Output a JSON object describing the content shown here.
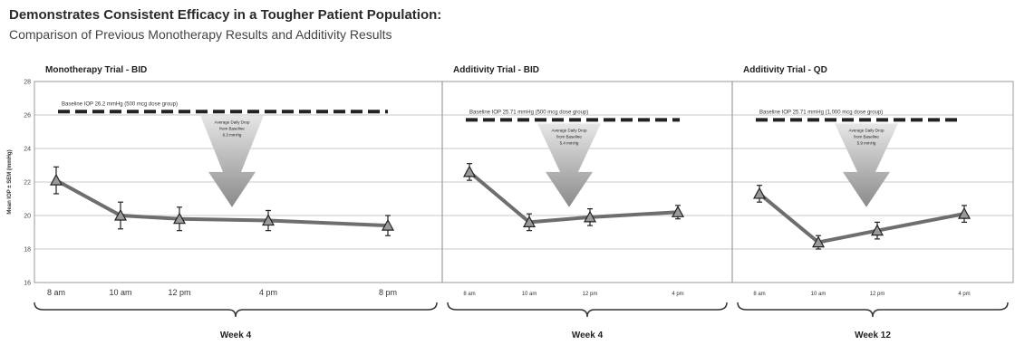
{
  "title": "Demonstrates Consistent Efficacy in a Tougher Patient Population:",
  "subtitle": "Comparison of Previous Monotherapy Results and Additivity Results",
  "chart_data": [
    {
      "type": "line",
      "title": "Monotherapy Trial - BID",
      "ylabel": "Mean IOP ± SEM (mmHg)",
      "ylim": [
        16,
        28
      ],
      "yticks": [
        "16",
        "18",
        "20",
        "22",
        "24",
        "26",
        "28"
      ],
      "categories": [
        "8 am",
        "10 am",
        "12 pm",
        "4 pm",
        "8 pm"
      ],
      "values": [
        22.1,
        20.0,
        19.8,
        19.7,
        19.4
      ],
      "errors": [
        0.8,
        0.8,
        0.7,
        0.6,
        0.6
      ],
      "baseline": {
        "value": 26.2,
        "label": "Baseline IOP 26.2 mmHg (500 mcg dose group)"
      },
      "annotation": [
        "Average Daily Drop",
        "from Baseline",
        "6.3 mmHg"
      ],
      "week_label": "Week 4",
      "grid": true
    },
    {
      "type": "line",
      "title": "Additivity Trial - BID",
      "ylim": [
        16,
        28
      ],
      "categories": [
        "8 am",
        "10 am",
        "12 pm",
        "4 pm"
      ],
      "values": [
        22.6,
        19.6,
        19.9,
        20.2
      ],
      "errors": [
        0.5,
        0.5,
        0.5,
        0.4
      ],
      "baseline": {
        "value": 25.71,
        "label": "Baseline IOP 25.71 mmHg (500 mcg dose group)"
      },
      "annotation": [
        "Average Daily Drop",
        "from Baseline",
        "5.4 mmHg"
      ],
      "week_label": "Week 4",
      "grid": true
    },
    {
      "type": "line",
      "title": "Additivity Trial - QD",
      "ylim": [
        16,
        28
      ],
      "categories": [
        "8 am",
        "10 am",
        "12 pm",
        "4 pm"
      ],
      "values": [
        21.3,
        18.4,
        19.1,
        20.1
      ],
      "errors": [
        0.5,
        0.4,
        0.5,
        0.5
      ],
      "baseline": {
        "value": 25.71,
        "label": "Baseline IOP 25.71 mmHg (1,000 mcg dose group)"
      },
      "annotation": [
        "Average Daily Drop",
        "from Baseline",
        "5.9 mmHg"
      ],
      "week_label": "Week 12",
      "grid": true
    }
  ]
}
